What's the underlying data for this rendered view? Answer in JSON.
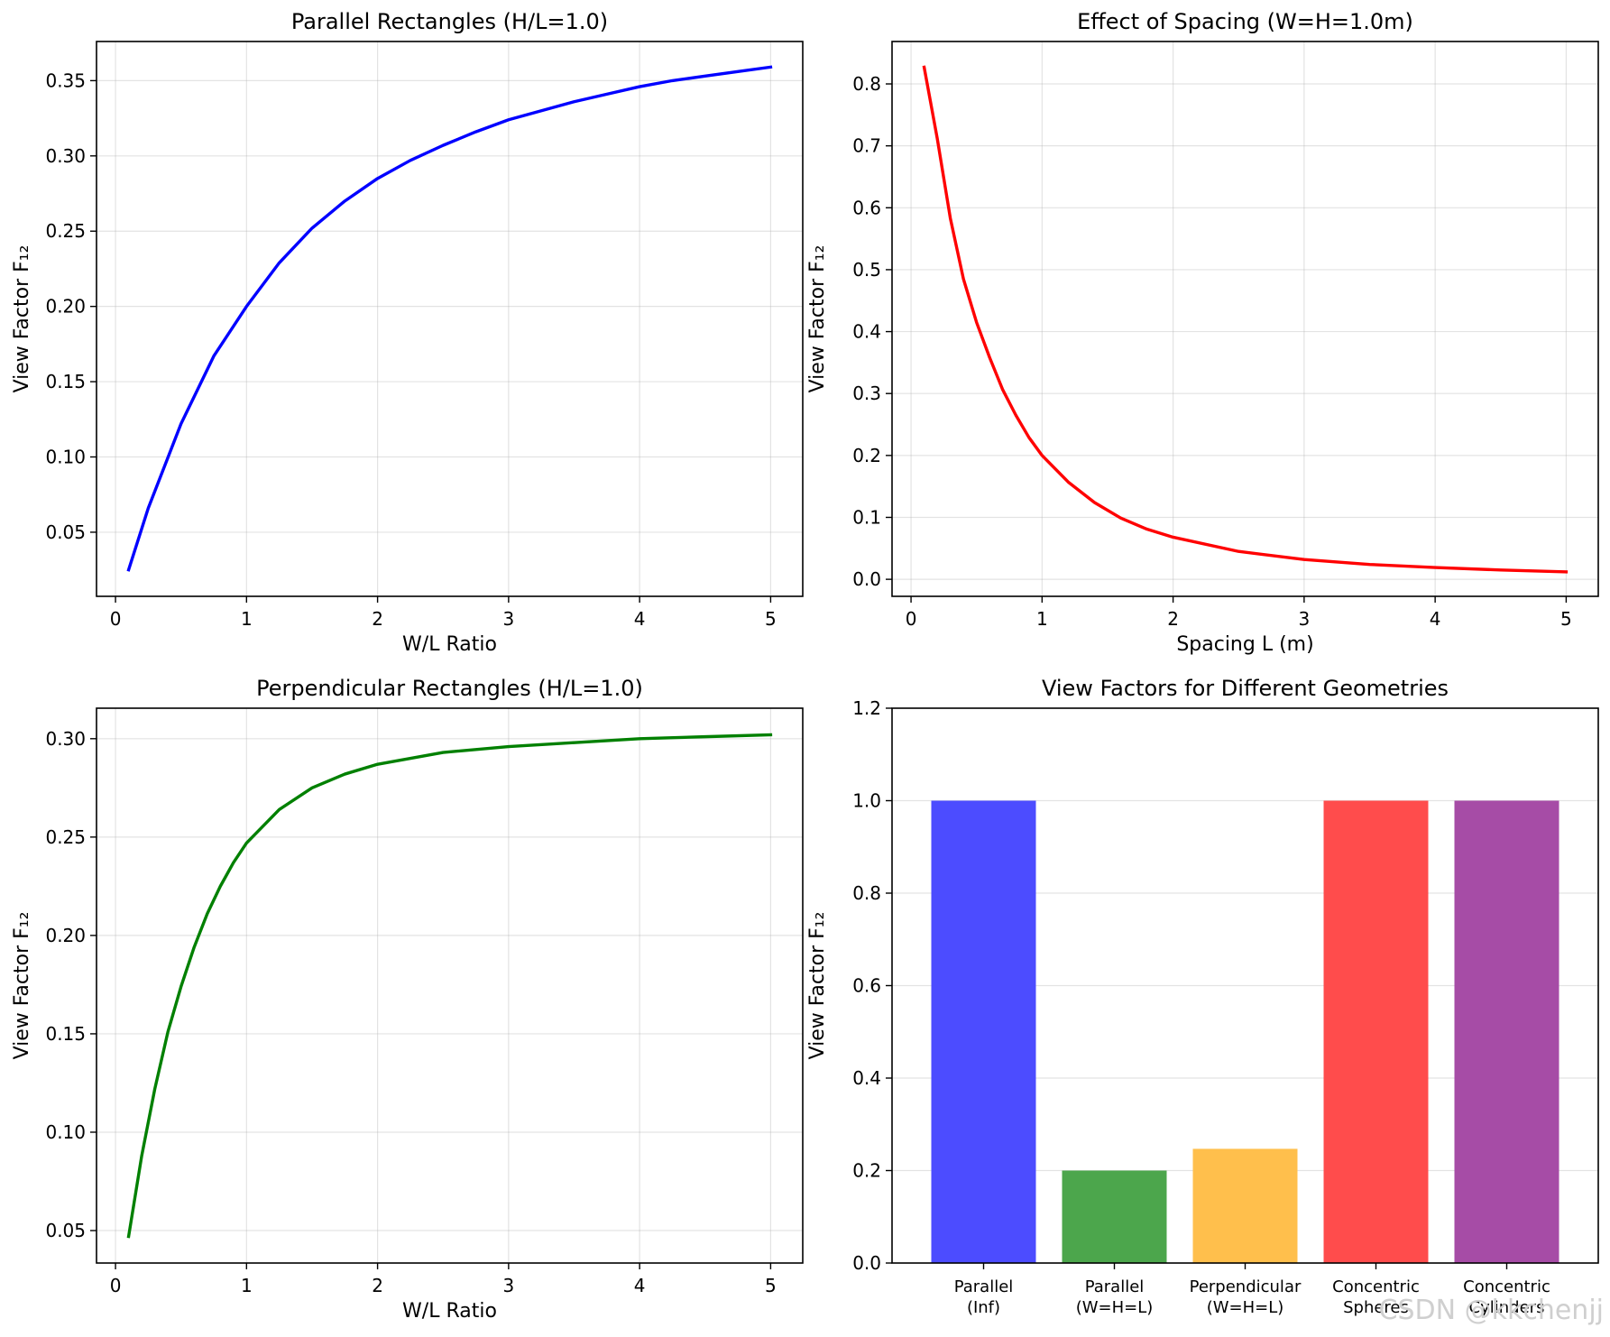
{
  "watermark": "CSDN @kkchenjj",
  "chart_data": [
    {
      "type": "line",
      "title": "Parallel Rectangles (H/L=1.0)",
      "xlabel": "W/L Ratio",
      "ylabel": "View Factor F₁₂",
      "xlim": [
        -0.145,
        5.245
      ],
      "ylim": [
        0.0074,
        0.376
      ],
      "xticks": [
        0,
        1,
        2,
        3,
        4,
        5
      ],
      "xtick_labels": [
        "0",
        "1",
        "2",
        "3",
        "4",
        "5"
      ],
      "yticks": [
        0.05,
        0.1,
        0.15,
        0.2,
        0.25,
        0.3,
        0.35
      ],
      "ytick_labels": [
        "0.05",
        "0.10",
        "0.15",
        "0.20",
        "0.25",
        "0.30",
        "0.35"
      ],
      "grid": true,
      "series": [
        {
          "name": "F12",
          "color": "#0000ff",
          "x": [
            0.1,
            0.25,
            0.5,
            0.75,
            1.0,
            1.25,
            1.5,
            1.75,
            2.0,
            2.25,
            2.5,
            2.75,
            3.0,
            3.25,
            3.5,
            3.75,
            4.0,
            4.25,
            4.5,
            4.75,
            5.0
          ],
          "y": [
            0.025,
            0.066,
            0.122,
            0.167,
            0.2,
            0.229,
            0.252,
            0.27,
            0.285,
            0.297,
            0.307,
            0.316,
            0.324,
            0.33,
            0.336,
            0.341,
            0.346,
            0.35,
            0.353,
            0.356,
            0.359
          ]
        }
      ]
    },
    {
      "type": "line",
      "title": "Effect of Spacing (W=H=1.0m)",
      "xlabel": "Spacing L (m)",
      "ylabel": "View Factor F₁₂",
      "xlim": [
        -0.145,
        5.245
      ],
      "ylim": [
        -0.0275,
        0.8685
      ],
      "xticks": [
        0,
        1,
        2,
        3,
        4,
        5
      ],
      "xtick_labels": [
        "0",
        "1",
        "2",
        "3",
        "4",
        "5"
      ],
      "yticks": [
        0.0,
        0.1,
        0.2,
        0.3,
        0.4,
        0.5,
        0.6,
        0.7,
        0.8
      ],
      "ytick_labels": [
        "0.0",
        "0.1",
        "0.2",
        "0.3",
        "0.4",
        "0.5",
        "0.6",
        "0.7",
        "0.8"
      ],
      "grid": true,
      "series": [
        {
          "name": "F12",
          "color": "#ff0000",
          "x": [
            0.1,
            0.2,
            0.3,
            0.4,
            0.5,
            0.6,
            0.7,
            0.8,
            0.9,
            1.0,
            1.2,
            1.4,
            1.6,
            1.8,
            2.0,
            2.5,
            3.0,
            3.5,
            4.0,
            4.5,
            5.0
          ],
          "y": [
            0.827,
            0.712,
            0.583,
            0.485,
            0.415,
            0.358,
            0.306,
            0.265,
            0.229,
            0.2,
            0.157,
            0.124,
            0.099,
            0.081,
            0.068,
            0.045,
            0.032,
            0.024,
            0.019,
            0.015,
            0.012
          ]
        }
      ]
    },
    {
      "type": "line",
      "title": "Perpendicular Rectangles (H/L=1.0)",
      "xlabel": "W/L Ratio",
      "ylabel": "View Factor F₁₂",
      "xlim": [
        -0.145,
        5.245
      ],
      "ylim": [
        0.0335,
        0.3155
      ],
      "xticks": [
        0,
        1,
        2,
        3,
        4,
        5
      ],
      "xtick_labels": [
        "0",
        "1",
        "2",
        "3",
        "4",
        "5"
      ],
      "yticks": [
        0.05,
        0.1,
        0.15,
        0.2,
        0.25,
        0.3
      ],
      "ytick_labels": [
        "0.05",
        "0.10",
        "0.15",
        "0.20",
        "0.25",
        "0.30"
      ],
      "grid": true,
      "series": [
        {
          "name": "F12",
          "color": "#008000",
          "x": [
            0.1,
            0.2,
            0.3,
            0.4,
            0.5,
            0.6,
            0.7,
            0.8,
            0.9,
            1.0,
            1.25,
            1.5,
            1.75,
            2.0,
            2.5,
            3.0,
            3.5,
            4.0,
            4.5,
            5.0
          ],
          "y": [
            0.047,
            0.088,
            0.122,
            0.151,
            0.174,
            0.194,
            0.211,
            0.225,
            0.237,
            0.247,
            0.264,
            0.275,
            0.282,
            0.287,
            0.293,
            0.296,
            0.298,
            0.3,
            0.301,
            0.302
          ]
        }
      ]
    },
    {
      "type": "bar",
      "title": "View Factors for Different Geometries",
      "xlabel": "",
      "ylabel": "View Factor F₁₂",
      "ylim": [
        0,
        1.2
      ],
      "yticks": [
        0.0,
        0.2,
        0.4,
        0.6,
        0.8,
        1.0,
        1.2
      ],
      "ytick_labels": [
        "0.0",
        "0.2",
        "0.4",
        "0.6",
        "0.8",
        "1.0",
        "1.2"
      ],
      "grid": true,
      "categories": [
        [
          "Parallel",
          "(Inf)"
        ],
        [
          "Parallel",
          "(W=H=L)"
        ],
        [
          "Perpendicular",
          "(W=H=L)"
        ],
        [
          "Concentric",
          "Spheres"
        ],
        [
          "Concentric",
          "Cylinders"
        ]
      ],
      "values": [
        1.0,
        0.2,
        0.247,
        1.0,
        1.0
      ],
      "colors": [
        "#4c4cff",
        "#4ca64c",
        "#ffbf4c",
        "#ff4c4c",
        "#a64ca6"
      ]
    }
  ]
}
